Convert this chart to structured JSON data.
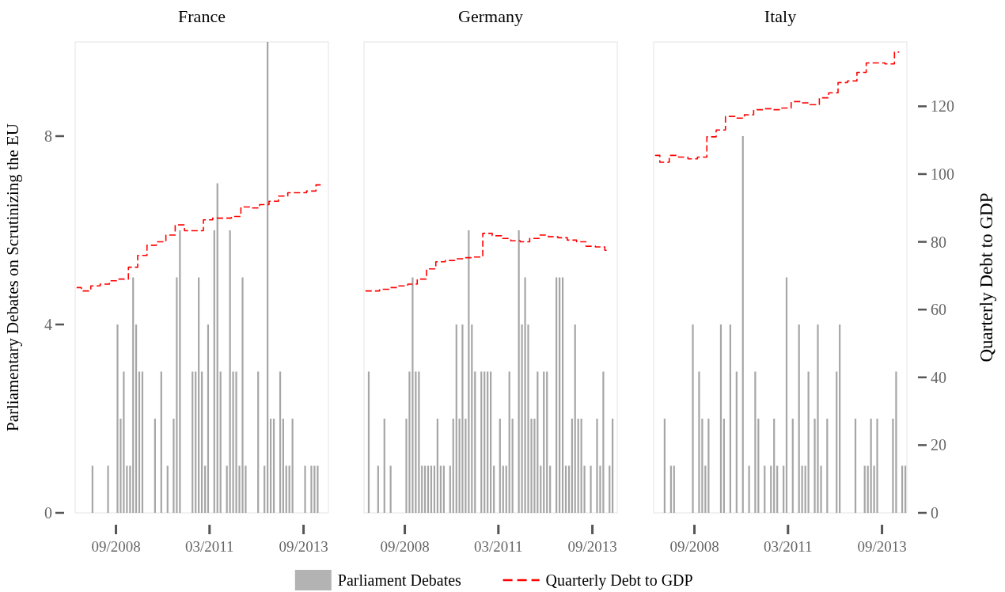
{
  "chart_data": [
    {
      "type": "bar",
      "title": "France",
      "ylabel": "Parliamentary Debates on Scrutinizing the EU",
      "xlim": [
        "2007-08",
        "2014-05"
      ],
      "xticks": [
        {
          "value": "2008-09",
          "label": "09/2008"
        },
        {
          "value": "2011-03",
          "label": "03/2011"
        },
        {
          "value": "2013-09",
          "label": "09/2013"
        }
      ],
      "ylim": [
        0,
        10
      ],
      "yticks": [
        0,
        4,
        8
      ],
      "y2lim": [
        0,
        139
      ],
      "series": [
        {
          "color": "#a6a6a6",
          "x": [
            "2008-01",
            "2008-06",
            "2008-09",
            "2008-10",
            "2008-11",
            "2008-12",
            "2009-01",
            "2009-02",
            "2009-03",
            "2009-04",
            "2009-05",
            "2009-09",
            "2009-11",
            "2010-01",
            "2010-03",
            "2010-04",
            "2010-05",
            "2010-09",
            "2010-10",
            "2010-11",
            "2010-12",
            "2011-01",
            "2011-02",
            "2011-04",
            "2011-05",
            "2011-06",
            "2011-08",
            "2011-09",
            "2011-10",
            "2011-11",
            "2011-12",
            "2012-01",
            "2012-02",
            "2012-06",
            "2012-08",
            "2012-09",
            "2012-10",
            "2012-11",
            "2013-01",
            "2013-02",
            "2013-03",
            "2013-04",
            "2013-05",
            "2013-09",
            "2013-11",
            "2013-12",
            "2014-01"
          ],
          "values": [
            1,
            1,
            4,
            2,
            3,
            1,
            1,
            5,
            4,
            3,
            3,
            2,
            3,
            1,
            2,
            5,
            6,
            3,
            3,
            5,
            3,
            1,
            4,
            6,
            7,
            3,
            1,
            6,
            3,
            3,
            1,
            5,
            1,
            3,
            1,
            10,
            2,
            2,
            3,
            2,
            1,
            1,
            2,
            1,
            1,
            1,
            1
          ]
        },
        {
          "type": "step",
          "axis": "y2",
          "color": "#ff0000",
          "line_style": "dashed",
          "x": [
            "2007-08-15",
            "2007-11-15",
            "2008-02-15",
            "2008-05-15",
            "2008-08-15",
            "2008-11-15",
            "2009-02-15",
            "2009-05-15",
            "2009-08-15",
            "2009-11-15",
            "2010-02-15",
            "2010-05-15",
            "2010-08-15",
            "2010-11-15",
            "2011-02-15",
            "2011-05-15",
            "2011-08-15",
            "2011-11-15",
            "2012-02-15",
            "2012-05-15",
            "2012-08-15",
            "2012-11-15",
            "2013-02-15",
            "2013-05-15",
            "2013-08-15",
            "2013-11-15",
            "2014-02-15"
          ],
          "values": [
            66.5,
            65.5,
            67,
            67.5,
            68.5,
            69,
            72.5,
            76,
            79,
            80,
            82,
            85,
            83.3,
            83.3,
            86.5,
            87,
            87,
            87.5,
            90.3,
            90,
            91,
            92,
            93.5,
            94.5,
            94.5,
            95,
            96.8
          ]
        }
      ]
    },
    {
      "type": "bar",
      "title": "Germany",
      "legend": "bottom",
      "xlim": [
        "2007-08",
        "2014-05"
      ],
      "xticks": [
        {
          "value": "2008-09",
          "label": "09/2008"
        },
        {
          "value": "2011-03",
          "label": "03/2011"
        },
        {
          "value": "2013-09",
          "label": "09/2013"
        }
      ],
      "ylim": [
        0,
        10
      ],
      "y2lim": [
        0,
        139
      ],
      "tick_labels": "x",
      "series": [
        {
          "name": "Parliament Debates",
          "color": "#a6a6a6",
          "x": [
            "2007-09",
            "2007-12",
            "2008-02",
            "2008-04",
            "2008-09",
            "2008-10",
            "2008-11",
            "2008-12",
            "2009-01",
            "2009-02",
            "2009-03",
            "2009-04",
            "2009-05",
            "2009-06",
            "2009-07",
            "2009-08",
            "2009-09",
            "2009-11",
            "2009-12",
            "2010-01",
            "2010-02",
            "2010-03",
            "2010-04",
            "2010-05",
            "2010-06",
            "2010-07",
            "2010-09",
            "2010-10",
            "2010-11",
            "2010-12",
            "2011-01",
            "2011-03",
            "2011-04",
            "2011-05",
            "2011-06",
            "2011-07",
            "2011-09",
            "2011-10",
            "2011-11",
            "2011-12",
            "2012-01",
            "2012-02",
            "2012-03",
            "2012-04",
            "2012-05",
            "2012-06",
            "2012-07",
            "2012-09",
            "2012-10",
            "2012-11",
            "2012-12",
            "2013-01",
            "2013-02",
            "2013-03",
            "2013-04",
            "2013-05",
            "2013-06",
            "2013-08",
            "2013-10",
            "2013-11",
            "2013-12",
            "2014-02",
            "2014-03"
          ],
          "values": [
            3,
            1,
            2,
            1,
            2,
            3,
            5,
            3,
            3,
            1,
            1,
            1,
            1,
            1,
            2,
            1,
            1,
            1,
            2,
            4,
            2,
            4,
            2,
            6,
            4,
            3,
            3,
            3,
            3,
            3,
            1,
            2,
            1,
            1,
            3,
            2,
            6,
            4,
            5,
            4,
            2,
            2,
            3,
            1,
            3,
            3,
            1,
            5,
            5,
            5,
            1,
            1,
            2,
            4,
            2,
            2,
            1,
            1,
            2,
            1,
            3,
            1,
            2
          ]
        },
        {
          "type": "step",
          "name": "Quarterly Debt to GDP",
          "axis": "y2",
          "color": "#ff0000",
          "line_style": "dashed",
          "x": [
            "2007-08-15",
            "2007-11-15",
            "2008-02-15",
            "2008-05-15",
            "2008-08-15",
            "2008-11-15",
            "2009-02-15",
            "2009-05-15",
            "2009-08-15",
            "2009-11-15",
            "2010-02-15",
            "2010-05-15",
            "2010-08-15",
            "2010-11-15",
            "2011-02-15",
            "2011-05-15",
            "2011-08-15",
            "2011-11-15",
            "2012-02-15",
            "2012-05-15",
            "2012-08-15",
            "2012-11-15",
            "2013-02-15",
            "2013-05-15",
            "2013-08-15",
            "2013-11-15",
            "2014-02-15"
          ],
          "values": [
            65.5,
            65.5,
            66,
            66.5,
            67,
            67.5,
            69,
            72,
            74.1,
            74.5,
            75,
            75.3,
            75.5,
            82.5,
            81.8,
            81,
            80.3,
            80,
            81,
            82,
            81.5,
            81.2,
            80.5,
            80,
            78.7,
            78.5,
            77.5
          ]
        }
      ]
    },
    {
      "type": "bar",
      "title": "Italy",
      "y2label": "Quarterly Debt to GDP",
      "xlim": [
        "2007-08",
        "2014-05"
      ],
      "xticks": [
        {
          "value": "2008-09",
          "label": "09/2008"
        },
        {
          "value": "2011-03",
          "label": "03/2011"
        },
        {
          "value": "2013-09",
          "label": "09/2013"
        }
      ],
      "ylim": [
        0,
        10
      ],
      "y2lim": [
        0,
        139
      ],
      "y2ticks": [
        0,
        20,
        40,
        60,
        80,
        100,
        120
      ],
      "series": [
        {
          "color": "#a6a6a6",
          "x": [
            "2007-11",
            "2008-01",
            "2008-02",
            "2008-08",
            "2008-10",
            "2008-11",
            "2008-12",
            "2009-01",
            "2009-05",
            "2009-06",
            "2009-08",
            "2009-10",
            "2009-12",
            "2010-02",
            "2010-04",
            "2010-05",
            "2010-07",
            "2010-09",
            "2010-10",
            "2010-11",
            "2011-01",
            "2011-02",
            "2011-04",
            "2011-06",
            "2011-07",
            "2011-08",
            "2011-09",
            "2011-11",
            "2011-12",
            "2012-01",
            "2012-03",
            "2012-06",
            "2012-07",
            "2012-12",
            "2013-03",
            "2013-04",
            "2013-05",
            "2013-06",
            "2013-07",
            "2013-12",
            "2014-01",
            "2014-03",
            "2014-04"
          ],
          "values": [
            2,
            1,
            1,
            4,
            3,
            2,
            1,
            2,
            4,
            2,
            4,
            3,
            8,
            1,
            3,
            2,
            1,
            1,
            2,
            1,
            1,
            5,
            2,
            4,
            1,
            1,
            3,
            2,
            4,
            1,
            2,
            3,
            4,
            2,
            1,
            1,
            2,
            1,
            2,
            2,
            3,
            1,
            1
          ]
        },
        {
          "type": "step",
          "axis": "y2",
          "color": "#ff0000",
          "line_style": "dashed",
          "x": [
            "2007-08-15",
            "2007-11-15",
            "2008-02-15",
            "2008-05-15",
            "2008-08-15",
            "2008-11-15",
            "2009-02-15",
            "2009-05-15",
            "2009-08-15",
            "2009-11-15",
            "2010-02-15",
            "2010-05-15",
            "2010-08-15",
            "2010-11-15",
            "2011-02-15",
            "2011-05-15",
            "2011-08-15",
            "2011-11-15",
            "2012-02-15",
            "2012-05-15",
            "2012-08-15",
            "2012-11-15",
            "2013-02-15",
            "2013-05-15",
            "2013-08-15",
            "2013-11-15",
            "2014-02-15"
          ],
          "values": [
            105.5,
            103.5,
            105.5,
            105,
            104.5,
            105,
            111,
            113,
            117,
            116.5,
            117.5,
            119,
            119.3,
            119,
            119.5,
            121.4,
            121,
            120.5,
            122.5,
            124,
            127,
            127.5,
            130,
            132.8,
            132.8,
            132.5,
            136
          ]
        }
      ]
    }
  ]
}
